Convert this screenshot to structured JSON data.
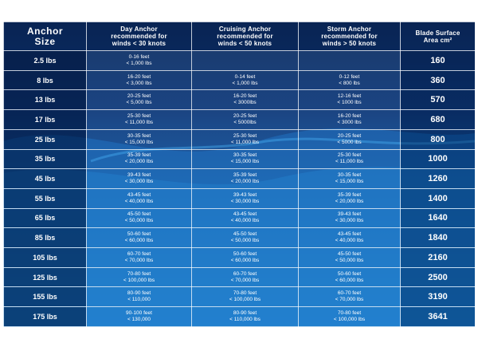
{
  "headers": {
    "size": [
      "Anchor",
      "Size"
    ],
    "day": [
      "Day Anchor",
      "recommended for",
      "winds < 30 knots"
    ],
    "cruising": [
      "Cruising Anchor",
      "recommended for",
      "winds < 50 knots"
    ],
    "storm": [
      "Storm Anchor",
      "recommended for",
      "winds > 50 knots"
    ],
    "area": [
      "Blade Surface",
      "Area cm²"
    ]
  },
  "rows": [
    {
      "size": "2.5 lbs",
      "day": [
        "0-16 feet",
        "< 1,000 lbs"
      ],
      "cruising": [
        "",
        ""
      ],
      "storm": [
        "",
        ""
      ],
      "area": "160"
    },
    {
      "size": "8 lbs",
      "day": [
        "16-20 feet",
        "< 3,000 lbs"
      ],
      "cruising": [
        "0-14 feet",
        "< 1,000 lbs"
      ],
      "storm": [
        "0-12 feet",
        "< 800 lbs"
      ],
      "area": "360"
    },
    {
      "size": "13 lbs",
      "day": [
        "20-25 feet",
        "< 5,000 lbs"
      ],
      "cruising": [
        "16-20 feet",
        "< 3000lbs"
      ],
      "storm": [
        "12-16 feet",
        "< 1000 lbs"
      ],
      "area": "570"
    },
    {
      "size": "17 lbs",
      "day": [
        "25-30 feet",
        "< 11,000 lbs"
      ],
      "cruising": [
        "20-25 feet",
        "< 5000lbs"
      ],
      "storm": [
        "16-20 feet",
        "< 3000 lbs"
      ],
      "area": "680"
    },
    {
      "size": "25 lbs",
      "day": [
        "30-35 feet",
        "< 15,000 lbs"
      ],
      "cruising": [
        "25-30 feet",
        "< 11,000 lbs"
      ],
      "storm": [
        "20-25 feet",
        "< 5000 lbs"
      ],
      "area": "800"
    },
    {
      "size": "35 lbs",
      "day": [
        "35-39 feet",
        "< 20,000 lbs"
      ],
      "cruising": [
        "30-35 feet",
        "< 15,000 lbs"
      ],
      "storm": [
        "25-30 feet",
        "< 11,000 lbs"
      ],
      "area": "1000"
    },
    {
      "size": "45 lbs",
      "day": [
        "39-43 feet",
        "< 30,000 lbs"
      ],
      "cruising": [
        "35-39 feet",
        "< 20,000 lbs"
      ],
      "storm": [
        "30-35 feet",
        "< 15,000 lbs"
      ],
      "area": "1260"
    },
    {
      "size": "55 lbs",
      "day": [
        "43-45 feet",
        "< 40,000 lbs"
      ],
      "cruising": [
        "39-43 feet",
        "< 30,000 lbs"
      ],
      "storm": [
        "35-39 feet",
        "< 20,000 lbs"
      ],
      "area": "1400"
    },
    {
      "size": "65 lbs",
      "day": [
        "45-50 feet",
        "< 50,000 lbs"
      ],
      "cruising": [
        "43-45 feet",
        "< 40,000 lbs"
      ],
      "storm": [
        "39-43 feet",
        "< 30,000 lbs"
      ],
      "area": "1640"
    },
    {
      "size": "85 lbs",
      "day": [
        "50-60 feet",
        "< 60,000 lbs"
      ],
      "cruising": [
        "45-50 feet",
        "< 50,000 lbs"
      ],
      "storm": [
        "43-45 feet",
        "< 40,000 lbs"
      ],
      "area": "1840"
    },
    {
      "size": "105 lbs",
      "day": [
        "60-70 feet",
        "< 70,000 lbs"
      ],
      "cruising": [
        "50-60 feet",
        "< 60,000 lbs"
      ],
      "storm": [
        "45-50 feet",
        "< 50,000 lbs"
      ],
      "area": "2160"
    },
    {
      "size": "125 lbs",
      "day": [
        "70-80 feet",
        "< 100,000 lbs"
      ],
      "cruising": [
        "60-70 feet",
        "< 70,000 lbs"
      ],
      "storm": [
        "50-60 feet",
        "< 60,000 lbs"
      ],
      "area": "2500"
    },
    {
      "size": "155 lbs",
      "day": [
        "80-90 feet",
        "< 110,000"
      ],
      "cruising": [
        "70-80 feet",
        "< 100,000 lbs"
      ],
      "storm": [
        "60-70 feet",
        "< 70,000 lbs"
      ],
      "area": "3190"
    },
    {
      "size": "175 lbs",
      "day": [
        "90-100 feet",
        "< 130,000"
      ],
      "cruising": [
        "80-90 feet",
        "< 110,000 lbs"
      ],
      "storm": [
        "70-80 feet",
        "< 100,000 lbs"
      ],
      "area": "3641"
    }
  ],
  "colors": {
    "background_top": "#0b2a5e",
    "background_bottom": "#1a8fe0",
    "text": "#ffffff",
    "grid": "#ffffff"
  }
}
